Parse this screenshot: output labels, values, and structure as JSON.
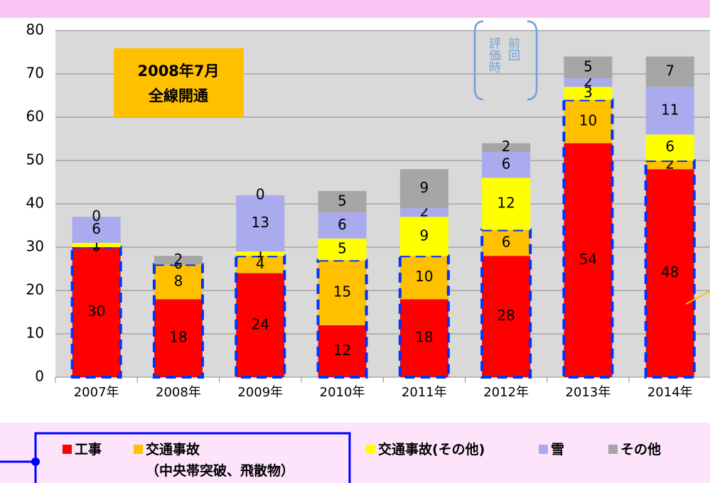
{
  "chart_data": {
    "type": "stacked_bar",
    "categories": [
      "2007年",
      "2008年",
      "2009年",
      "2010年",
      "2011年",
      "2012年",
      "2013年",
      "2014年"
    ],
    "series": [
      {
        "name": "工事",
        "color": "#ff0000",
        "values": [
          30,
          18,
          24,
          12,
          18,
          28,
          54,
          48
        ]
      },
      {
        "name": "交通事故\n（中央帯突破、飛散物）",
        "color": "#ffc000",
        "values": [
          0,
          8,
          4,
          15,
          10,
          6,
          10,
          2
        ]
      },
      {
        "name": "交通事故(その他)",
        "color": "#ffff00",
        "values": [
          1,
          0,
          1,
          5,
          9,
          12,
          3,
          6
        ]
      },
      {
        "name": "雪",
        "color": "#aaaaee",
        "values": [
          6,
          0,
          13,
          6,
          2,
          6,
          2,
          11
        ]
      },
      {
        "name": "その他",
        "color": "#a6a6a6",
        "values": [
          0,
          2,
          0,
          5,
          9,
          2,
          5,
          7
        ]
      }
    ],
    "ylim": [
      0,
      80
    ],
    "yticks": [
      0,
      10,
      20,
      30,
      40,
      50,
      60,
      70,
      80
    ],
    "grid": true,
    "annotation": [
      "2008年7月",
      "全線開通"
    ],
    "note": [
      "前回",
      "評価時"
    ]
  }
}
